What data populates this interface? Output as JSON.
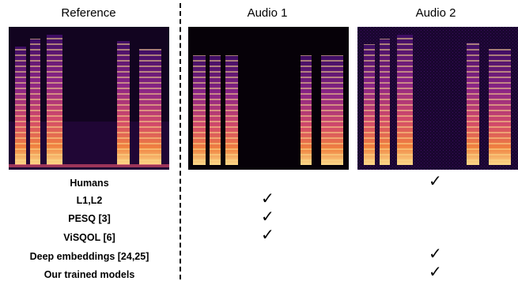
{
  "columns": {
    "reference": "Reference",
    "audio1": "Audio 1",
    "audio2": "Audio 2"
  },
  "rows": [
    {
      "label": "Humans",
      "audio1": false,
      "audio2": true
    },
    {
      "label": "L1,L2",
      "audio1": true,
      "audio2": false
    },
    {
      "label": "PESQ [3]",
      "audio1": true,
      "audio2": false
    },
    {
      "label": "ViSQOL [6]",
      "audio1": true,
      "audio2": false
    },
    {
      "label": "Deep embeddings [24,25]",
      "audio1": false,
      "audio2": true
    },
    {
      "label": "Our trained models",
      "audio1": false,
      "audio2": true
    }
  ],
  "check_symbol": "✓",
  "colors": {
    "spectrogram_bg": "#120420",
    "dim": "#3d0d63",
    "mid": "#b5367a",
    "hot": "#f0803f",
    "bright": "#fbd989"
  }
}
